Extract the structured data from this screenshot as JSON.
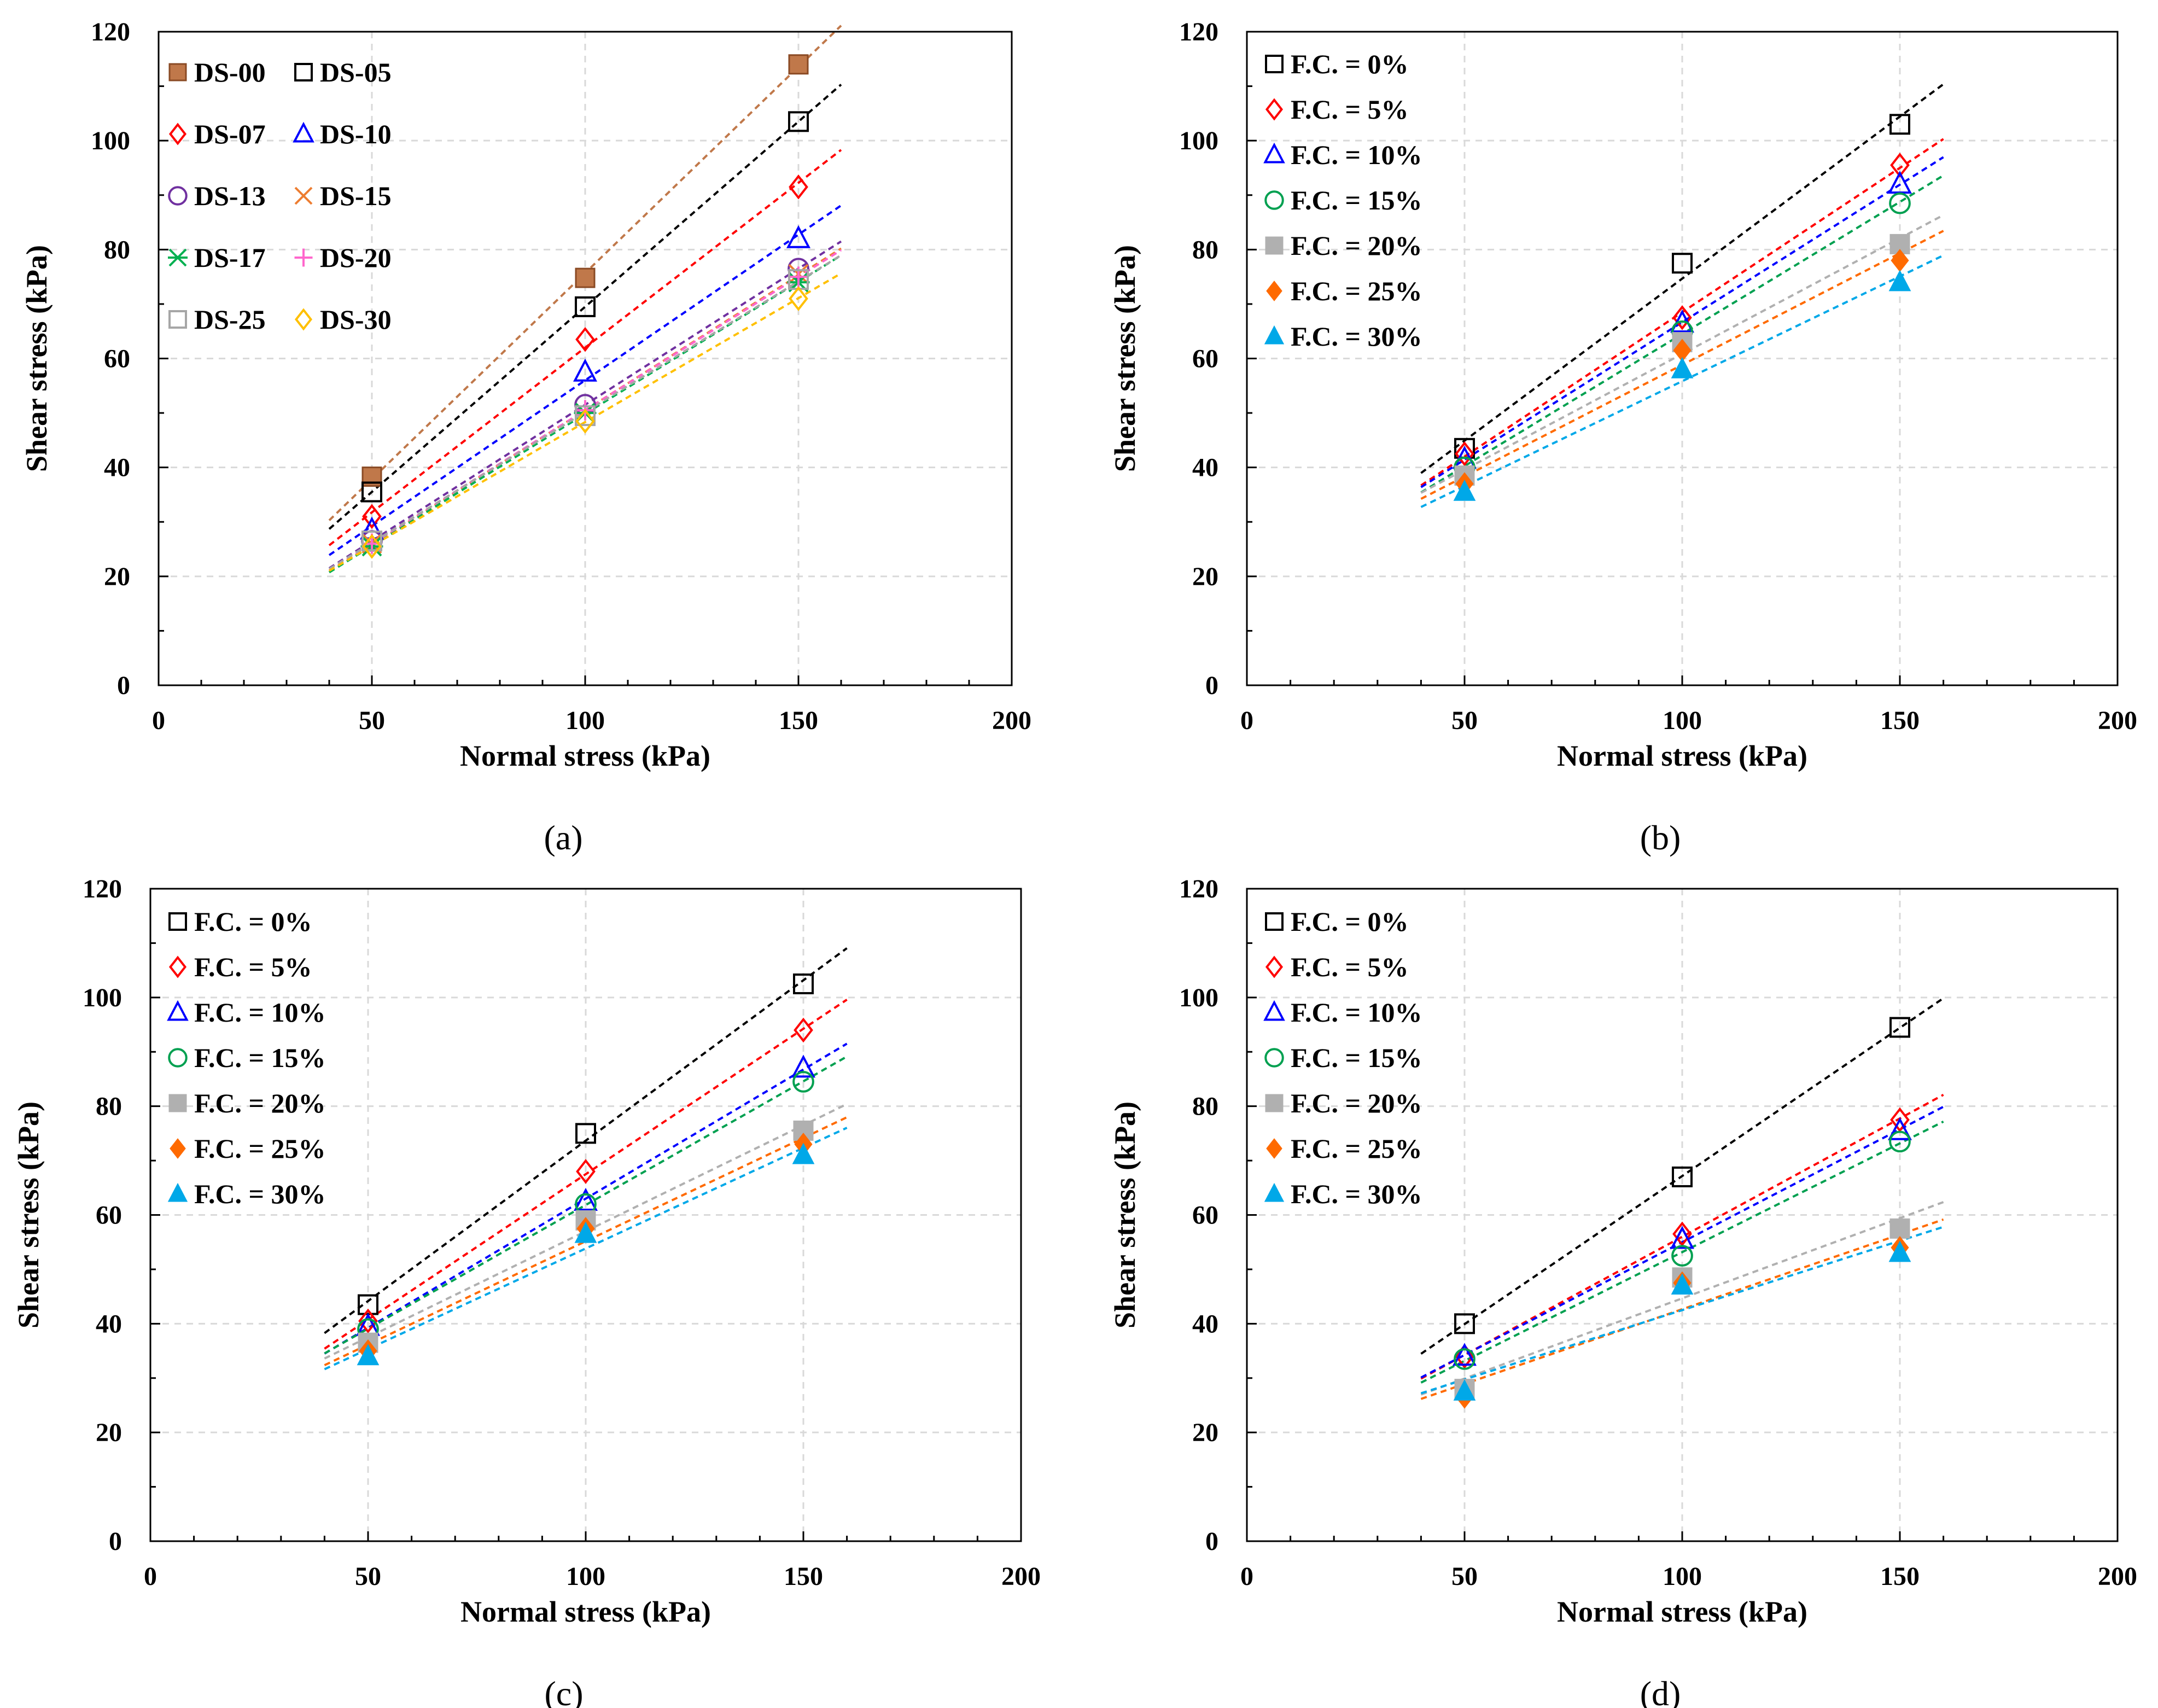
{
  "chart_data": [
    {
      "type": "scatter",
      "panel_label": "(a)",
      "xlabel": "Normal stress (kPa)",
      "ylabel": "Shear stress (kPa)",
      "xlim": [
        0,
        200
      ],
      "ylim": [
        0,
        120
      ],
      "xticks": [
        0,
        50,
        100,
        150,
        200
      ],
      "yticks": [
        0,
        20,
        40,
        60,
        80,
        100,
        120
      ],
      "grid": true,
      "legend_position": "top-left",
      "legend_columns": 2,
      "trendline_x_range": [
        40,
        160
      ],
      "x": [
        50,
        100,
        150
      ],
      "series": [
        {
          "name": "DS-00",
          "color": "#c0784a",
          "marker": "square-filled",
          "values": [
            38.3,
            74.8,
            114.0
          ]
        },
        {
          "name": "DS-05",
          "color": "#000000",
          "marker": "square-open",
          "values": [
            35.5,
            69.5,
            103.5
          ]
        },
        {
          "name": "DS-07",
          "color": "#ff0000",
          "marker": "diamond-open",
          "values": [
            31.0,
            63.5,
            91.5
          ]
        },
        {
          "name": "DS-10",
          "color": "#0000ff",
          "marker": "triangle-open",
          "values": [
            28.5,
            57.5,
            82.0
          ]
        },
        {
          "name": "DS-13",
          "color": "#7030a0",
          "marker": "circle-open",
          "values": [
            26.5,
            51.5,
            76.5
          ]
        },
        {
          "name": "DS-15",
          "color": "#ed7d31",
          "marker": "x",
          "values": [
            26.0,
            50.0,
            75.5
          ]
        },
        {
          "name": "DS-17",
          "color": "#00b050",
          "marker": "asterisk",
          "values": [
            25.5,
            50.0,
            74.0
          ]
        },
        {
          "name": "DS-20",
          "color": "#ff66cc",
          "marker": "plus",
          "values": [
            26.0,
            50.5,
            75.0
          ]
        },
        {
          "name": "DS-25",
          "color": "#a6a6a6",
          "marker": "square-open",
          "values": [
            26.5,
            49.5,
            74.5
          ]
        },
        {
          "name": "DS-30",
          "color": "#ffc000",
          "marker": "diamond-open",
          "values": [
            25.5,
            48.5,
            71.0
          ]
        }
      ]
    },
    {
      "type": "scatter",
      "panel_label": "(b)",
      "xlabel": "Normal stress (kPa)",
      "ylabel": "Shear stress (kPa)",
      "xlim": [
        0,
        200
      ],
      "ylim": [
        0,
        120
      ],
      "xticks": [
        0,
        50,
        100,
        150,
        200
      ],
      "yticks": [
        0,
        20,
        40,
        60,
        80,
        100,
        120
      ],
      "grid": true,
      "legend_position": "top-left",
      "legend_columns": 1,
      "trendline_x_range": [
        40,
        160
      ],
      "x": [
        50,
        100,
        150
      ],
      "series": [
        {
          "name": "F.C. = 0%",
          "color": "#000000",
          "marker": "square-open",
          "values": [
            43.5,
            77.5,
            103.0
          ]
        },
        {
          "name": "F.C. = 5%",
          "color": "#ff0000",
          "marker": "diamond-open",
          "values": [
            42.5,
            67.5,
            95.5
          ]
        },
        {
          "name": "F.C. = 10%",
          "color": "#0000ff",
          "marker": "triangle-open",
          "values": [
            41.5,
            66.5,
            92.0
          ]
        },
        {
          "name": "F.C. = 15%",
          "color": "#00a050",
          "marker": "circle-open",
          "values": [
            40.0,
            65.0,
            88.5
          ]
        },
        {
          "name": "F.C. = 20%",
          "color": "#b0b0b0",
          "marker": "square-filled",
          "values": [
            38.5,
            63.0,
            81.0
          ]
        },
        {
          "name": "F.C. = 25%",
          "color": "#ff6a00",
          "marker": "diamond-filled",
          "values": [
            37.0,
            61.5,
            78.0
          ]
        },
        {
          "name": "F.C. = 30%",
          "color": "#00a8e8",
          "marker": "triangle-filled",
          "values": [
            35.5,
            58.0,
            74.0
          ]
        }
      ]
    },
    {
      "type": "scatter",
      "panel_label": "(c)",
      "xlabel": "Normal stress (kPa)",
      "ylabel": "Shear stress (kPa)",
      "xlim": [
        0,
        200
      ],
      "ylim": [
        0,
        120
      ],
      "xticks": [
        0,
        50,
        100,
        150,
        200
      ],
      "yticks": [
        0,
        20,
        40,
        60,
        80,
        100,
        120
      ],
      "grid": true,
      "legend_position": "top-left",
      "legend_columns": 1,
      "trendline_x_range": [
        40,
        160
      ],
      "x": [
        50,
        100,
        150
      ],
      "series": [
        {
          "name": "F.C. = 0%",
          "color": "#000000",
          "marker": "square-open",
          "values": [
            43.5,
            75.0,
            102.5
          ]
        },
        {
          "name": "F.C. = 5%",
          "color": "#ff0000",
          "marker": "diamond-open",
          "values": [
            40.5,
            68.0,
            94.0
          ]
        },
        {
          "name": "F.C. = 10%",
          "color": "#0000ff",
          "marker": "triangle-open",
          "values": [
            39.5,
            62.5,
            87.0
          ]
        },
        {
          "name": "F.C. = 15%",
          "color": "#00a050",
          "marker": "circle-open",
          "values": [
            39.0,
            62.0,
            84.5
          ]
        },
        {
          "name": "F.C. = 20%",
          "color": "#b0b0b0",
          "marker": "square-filled",
          "values": [
            36.5,
            59.0,
            75.5
          ]
        },
        {
          "name": "F.C. = 25%",
          "color": "#ff6a00",
          "marker": "diamond-filled",
          "values": [
            35.0,
            57.5,
            73.0
          ]
        },
        {
          "name": "F.C. = 30%",
          "color": "#00a8e8",
          "marker": "triangle-filled",
          "values": [
            34.0,
            56.5,
            71.0
          ]
        }
      ]
    },
    {
      "type": "scatter",
      "panel_label": "(d)",
      "xlabel": "Normal stress (kPa)",
      "ylabel": "Shear stress (kPa)",
      "xlim": [
        0,
        200
      ],
      "ylim": [
        0,
        120
      ],
      "xticks": [
        0,
        50,
        100,
        150,
        200
      ],
      "yticks": [
        0,
        20,
        40,
        60,
        80,
        100,
        120
      ],
      "grid": true,
      "legend_position": "top-left",
      "legend_columns": 1,
      "trendline_x_range": [
        40,
        160
      ],
      "x": [
        50,
        100,
        150
      ],
      "series": [
        {
          "name": "F.C. = 0%",
          "color": "#000000",
          "marker": "square-open",
          "values": [
            40.0,
            67.0,
            94.5
          ]
        },
        {
          "name": "F.C. = 5%",
          "color": "#ff0000",
          "marker": "diamond-open",
          "values": [
            34.0,
            56.5,
            77.5
          ]
        },
        {
          "name": "F.C. = 10%",
          "color": "#0000ff",
          "marker": "triangle-open",
          "values": [
            34.0,
            55.5,
            75.5
          ]
        },
        {
          "name": "F.C. = 15%",
          "color": "#00a050",
          "marker": "circle-open",
          "values": [
            33.5,
            52.5,
            73.5
          ]
        },
        {
          "name": "F.C. = 20%",
          "color": "#b0b0b0",
          "marker": "square-filled",
          "values": [
            28.0,
            48.5,
            57.5
          ]
        },
        {
          "name": "F.C. = 25%",
          "color": "#ff6a00",
          "marker": "diamond-filled",
          "values": [
            26.5,
            47.5,
            54.0
          ]
        },
        {
          "name": "F.C. = 30%",
          "color": "#00a8e8",
          "marker": "triangle-filled",
          "values": [
            27.5,
            47.0,
            53.0
          ]
        }
      ]
    }
  ]
}
